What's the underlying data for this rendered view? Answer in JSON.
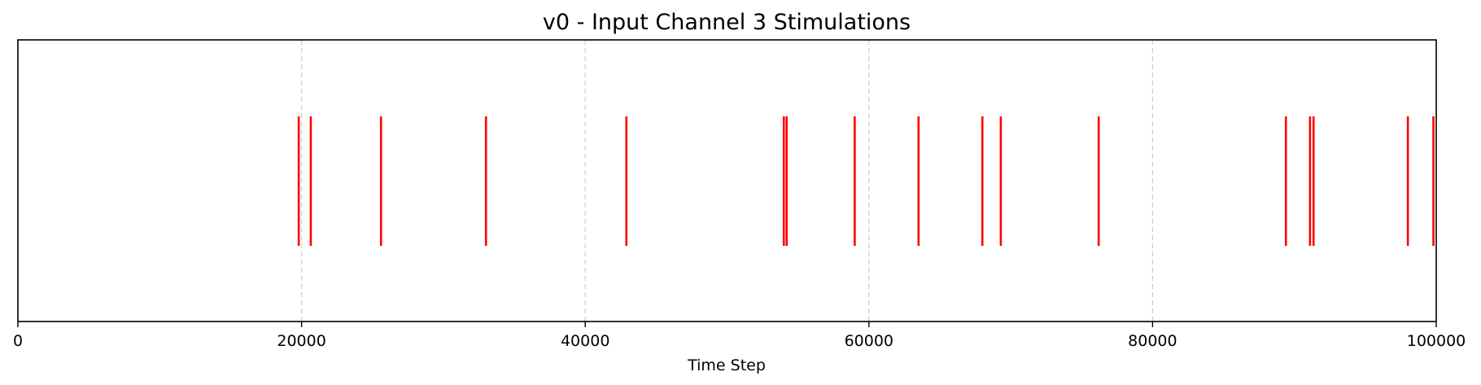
{
  "chart_data": {
    "type": "eventplot",
    "title": "v0 - Input Channel 3 Stimulations",
    "xlabel": "Time Step",
    "ylabel": "",
    "xlim": [
      0,
      100000
    ],
    "xticks": [
      0,
      20000,
      40000,
      60000,
      80000,
      100000
    ],
    "xtick_labels": [
      "0",
      "20000",
      "40000",
      "60000",
      "80000",
      "100000"
    ],
    "grid": {
      "axis": "x",
      "style": "dashed",
      "visible": true
    },
    "y_axis_visible": false,
    "series": [
      {
        "color": "#ff0000",
        "events": [
          19800,
          20650,
          25600,
          33000,
          42900,
          54000,
          54200,
          59000,
          63500,
          68000,
          69300,
          76200,
          89400,
          91100,
          91350,
          98000,
          99800
        ]
      }
    ]
  }
}
